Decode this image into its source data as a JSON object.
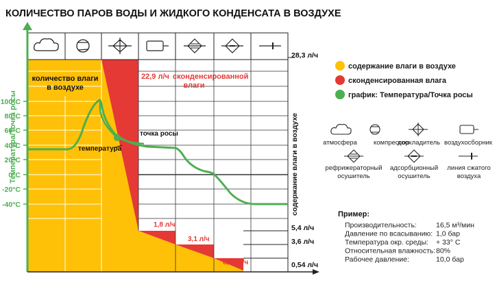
{
  "title": "КОЛИЧЕСТВО ПАРОВ ВОДЫ И ЖИДКОГО КОНДЕНСАТА В ВОЗДУХЕ",
  "colors": {
    "green": "#4caf50",
    "orange": "#ffc107",
    "red": "#e53935",
    "grid": "#222222"
  },
  "y_axis_label": "Температура/Точка росы",
  "right_axis_label": "содержание влаги в воздухе",
  "temperature_ticks": [
    "100°C",
    "80°C",
    "60°C",
    "40°C",
    "20°C",
    "0°C",
    "-20°C",
    "-40°C"
  ],
  "flow_ticks": [
    "28,3 л/ч",
    "5,4 л/ч",
    "3,6 л/ч",
    "0,54 л/ч"
  ],
  "stages": [
    "atmosphere-icon",
    "compressor-icon",
    "aftercooler-icon",
    "air-receiver-icon",
    "refrigeration-dryer-icon",
    "adsorption-dryer-icon",
    "air-line-icon"
  ],
  "annotations": {
    "moisture_in_air_line1": "количество влаги",
    "moisture_in_air_line2": "в воздухе",
    "condensed_value": "22,9 л/ч",
    "condensed_text": "сконденсированной",
    "condensed_text2": "влаги",
    "dew_point": "точка росы",
    "temperature": "температура",
    "drop1": "1,8 л/ч",
    "drop2": "3,1 л/ч",
    "drop3": "0,63 л/ч"
  },
  "legend": [
    {
      "label": "содержание влаги в воздухе",
      "color": "#ffc107"
    },
    {
      "label": "сконденсированная влага",
      "color": "#e53935"
    },
    {
      "label": "график: Температура/Точка росы",
      "color": "#4caf50"
    }
  ],
  "components": {
    "atmosphere": "атмосфера",
    "compressor": "компрессор",
    "aftercooler": "доохладитель",
    "receiver": "воздухосборник",
    "refrig_line1": "рефрижераторный",
    "refrig_line2": "осушитель",
    "adsorp_line1": "адсорбционный",
    "adsorp_line2": "осушитель",
    "line_line1": "линия сжатого",
    "line_line2": "воздуха"
  },
  "example": {
    "heading": "Пример:",
    "rows": [
      {
        "label": "Производительность:",
        "value": "16,5 м³/мин"
      },
      {
        "label": "Давление по всасыванию:",
        "value": "1,0 бар"
      },
      {
        "label": "Температура окр. среды:",
        "value": "+ 33° C"
      },
      {
        "label": "Относительная влажность:",
        "value": "80%"
      },
      {
        "label": "Рабочее давление:",
        "value": "10,0 бар"
      }
    ]
  }
}
